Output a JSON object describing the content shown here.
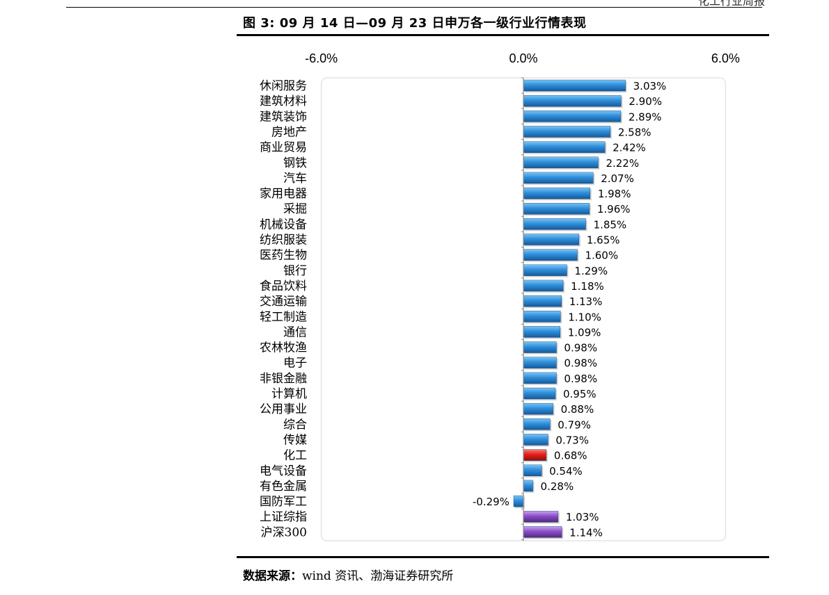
{
  "header": {
    "partial_text": "化工行业周报",
    "figure_title": "图 3:  09 月 14 日—09 月 23 日申万各一级行业行情表现"
  },
  "source": {
    "label": "数据来源：",
    "text": "wind 资讯、渤海证券研究所"
  },
  "colors": {
    "default_bar": "#2f8fdb",
    "highlight_bar": "#e0201b",
    "index_bar": "#8a4fc8"
  },
  "chart_data": {
    "type": "bar",
    "orientation": "horizontal",
    "title": "",
    "xlabel": "",
    "ylabel": "",
    "xlim": [
      -6.0,
      6.0
    ],
    "x_ticks": [
      "-6.0%",
      "0.0%",
      "6.0%"
    ],
    "x_axis_position": "top",
    "grid": false,
    "categories": [
      "休闲服务",
      "建筑材料",
      "建筑装饰",
      "房地产",
      "商业贸易",
      "钢铁",
      "汽车",
      "家用电器",
      "采掘",
      "机械设备",
      "纺织服装",
      "医药生物",
      "银行",
      "食品饮料",
      "交通运输",
      "轻工制造",
      "通信",
      "农林牧渔",
      "电子",
      "非银金融",
      "计算机",
      "公用事业",
      "综合",
      "传媒",
      "化工",
      "电气设备",
      "有色金属",
      "国防军工",
      "上证综指",
      "沪深300"
    ],
    "values": [
      3.03,
      2.9,
      2.89,
      2.58,
      2.42,
      2.22,
      2.07,
      1.98,
      1.96,
      1.85,
      1.65,
      1.6,
      1.29,
      1.18,
      1.13,
      1.1,
      1.09,
      0.98,
      0.98,
      0.98,
      0.95,
      0.88,
      0.79,
      0.73,
      0.68,
      0.54,
      0.28,
      -0.29,
      1.03,
      1.14
    ],
    "value_labels": [
      "3.03%",
      "2.90%",
      "2.89%",
      "2.58%",
      "2.42%",
      "2.22%",
      "2.07%",
      "1.98%",
      "1.96%",
      "1.85%",
      "1.65%",
      "1.60%",
      "1.29%",
      "1.18%",
      "1.13%",
      "1.10%",
      "1.09%",
      "0.98%",
      "0.98%",
      "0.98%",
      "0.95%",
      "0.88%",
      "0.79%",
      "0.73%",
      "0.68%",
      "0.54%",
      "0.28%",
      "-0.29%",
      "1.03%",
      "1.14%"
    ],
    "bar_color_groups": [
      "default",
      "default",
      "default",
      "default",
      "default",
      "default",
      "default",
      "default",
      "default",
      "default",
      "default",
      "default",
      "default",
      "default",
      "default",
      "default",
      "default",
      "default",
      "default",
      "default",
      "default",
      "default",
      "default",
      "default",
      "highlight",
      "default",
      "default",
      "default",
      "index",
      "index"
    ]
  }
}
